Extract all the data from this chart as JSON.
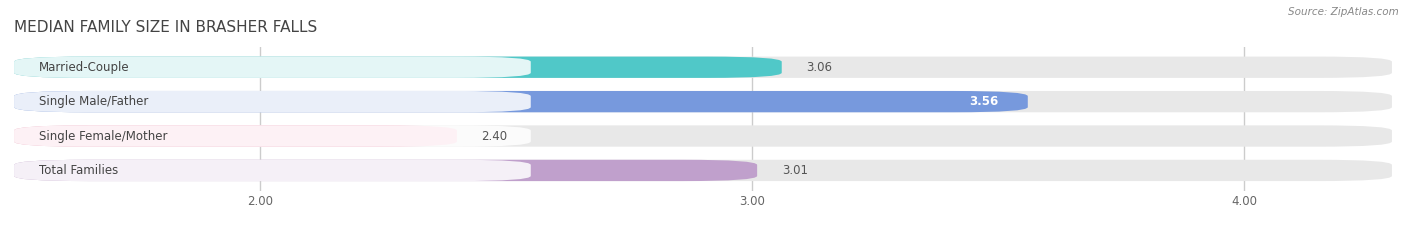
{
  "title": "MEDIAN FAMILY SIZE IN BRASHER FALLS",
  "source": "Source: ZipAtlas.com",
  "categories": [
    "Married-Couple",
    "Single Male/Father",
    "Single Female/Mother",
    "Total Families"
  ],
  "values": [
    3.06,
    3.56,
    2.4,
    3.01
  ],
  "bar_colors": [
    "#50c8c8",
    "#7799dd",
    "#f4a8c0",
    "#c0a0cc"
  ],
  "xlim_left": 1.5,
  "xlim_right": 4.3,
  "xmin": 1.5,
  "xmax": 4.3,
  "xticks": [
    2.0,
    3.0,
    4.0
  ],
  "xtick_labels": [
    "2.00",
    "3.00",
    "4.00"
  ],
  "label_fontsize": 8.5,
  "value_fontsize": 8.5,
  "title_fontsize": 11,
  "background_color": "#ffffff",
  "bar_bg_color": "#e8e8e8",
  "bar_height": 0.62,
  "label_box_color": "#ffffff",
  "grid_color": "#cccccc"
}
